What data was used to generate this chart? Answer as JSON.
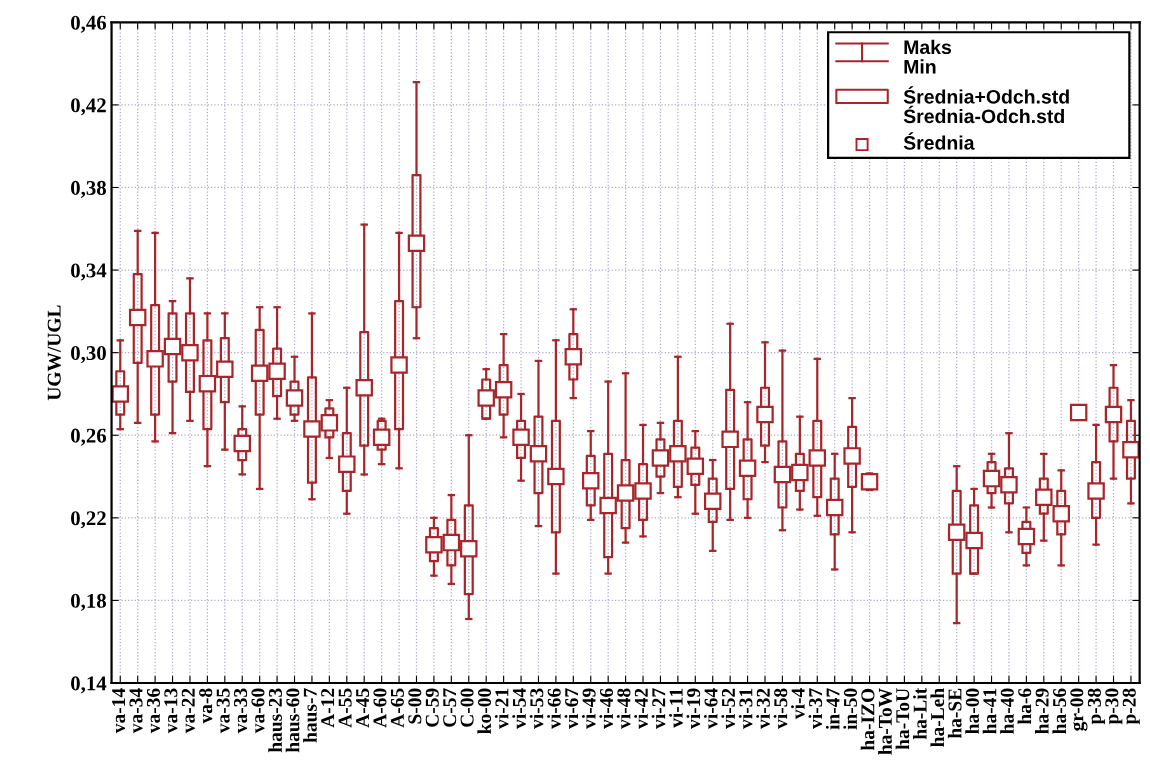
{
  "chart_data": {
    "type": "box",
    "ylabel": "UGW/UGL",
    "categories": [
      "va-14",
      "va-34",
      "va-36",
      "va-13",
      "va-22",
      "va-8",
      "va-35",
      "va-33",
      "va-60",
      "haus-23",
      "haus-60",
      "haus-7",
      "A-12",
      "A-55",
      "A-45",
      "A-60",
      "A-65",
      "S-00",
      "C-59",
      "C-57",
      "C-00",
      "ko-00",
      "vi-21",
      "vi-54",
      "vi-53",
      "vi-66",
      "vi-67",
      "vi-49",
      "vi-46",
      "vi-48",
      "vi-42",
      "vi-27",
      "vi-11",
      "vi-19",
      "vi-64",
      "vi-52",
      "vi-31",
      "vi-32",
      "vi-58",
      "vi-4",
      "vi-37",
      "in-47",
      "in-50",
      "ha-IZO",
      "ha-ToW",
      "ha-ToU",
      "ha-Lit",
      "ha-Leh",
      "ha-SE",
      "ha-00",
      "ha-41",
      "ha-40",
      "ha-6",
      "ha-29",
      "ha-56",
      "gr-00",
      "p-38",
      "p-30",
      "p-28"
    ],
    "color": "#a8262a",
    "boxes": [
      {
        "low": 0.263,
        "q1": 0.27,
        "mean": 0.28,
        "q3": 0.291,
        "high": 0.306
      },
      {
        "low": 0.266,
        "q1": 0.295,
        "mean": 0.317,
        "q3": 0.338,
        "high": 0.359
      },
      {
        "low": 0.257,
        "q1": 0.27,
        "mean": 0.297,
        "q3": 0.323,
        "high": 0.358
      },
      {
        "low": 0.261,
        "q1": 0.286,
        "mean": 0.303,
        "q3": 0.319,
        "high": 0.325
      },
      {
        "low": 0.267,
        "q1": 0.281,
        "mean": 0.3,
        "q3": 0.319,
        "high": 0.336
      },
      {
        "low": 0.245,
        "q1": 0.263,
        "mean": 0.285,
        "q3": 0.306,
        "high": 0.319
      },
      {
        "low": 0.253,
        "q1": 0.276,
        "mean": 0.292,
        "q3": 0.307,
        "high": 0.319
      },
      {
        "low": 0.241,
        "q1": 0.248,
        "mean": 0.256,
        "q3": 0.263,
        "high": 0.274
      },
      {
        "low": 0.234,
        "q1": 0.27,
        "mean": 0.29,
        "q3": 0.311,
        "high": 0.322
      },
      {
        "low": 0.268,
        "q1": 0.279,
        "mean": 0.291,
        "q3": 0.302,
        "high": 0.322
      },
      {
        "low": 0.267,
        "q1": 0.27,
        "mean": 0.278,
        "q3": 0.286,
        "high": 0.298
      },
      {
        "low": 0.229,
        "q1": 0.237,
        "mean": 0.263,
        "q3": 0.288,
        "high": 0.319
      },
      {
        "low": 0.249,
        "q1": 0.259,
        "mean": 0.266,
        "q3": 0.273,
        "high": 0.277
      },
      {
        "low": 0.222,
        "q1": 0.233,
        "mean": 0.246,
        "q3": 0.261,
        "high": 0.283
      },
      {
        "low": 0.241,
        "q1": 0.255,
        "mean": 0.283,
        "q3": 0.31,
        "high": 0.362
      },
      {
        "low": 0.246,
        "q1": 0.253,
        "mean": 0.259,
        "q3": 0.267,
        "high": 0.268
      },
      {
        "low": 0.244,
        "q1": 0.263,
        "mean": 0.294,
        "q3": 0.325,
        "high": 0.358
      },
      {
        "low": 0.307,
        "q1": 0.322,
        "mean": 0.353,
        "q3": 0.386,
        "high": 0.431
      },
      {
        "low": 0.192,
        "q1": 0.199,
        "mean": 0.207,
        "q3": 0.215,
        "high": 0.22
      },
      {
        "low": 0.188,
        "q1": 0.197,
        "mean": 0.208,
        "q3": 0.219,
        "high": 0.231
      },
      {
        "low": 0.171,
        "q1": 0.183,
        "mean": 0.205,
        "q3": 0.226,
        "high": 0.26
      },
      {
        "low": 0.268,
        "q1": 0.268,
        "mean": 0.278,
        "q3": 0.287,
        "high": 0.292
      },
      {
        "low": 0.259,
        "q1": 0.27,
        "mean": 0.282,
        "q3": 0.294,
        "high": 0.309
      },
      {
        "low": 0.238,
        "q1": 0.249,
        "mean": 0.259,
        "q3": 0.267,
        "high": 0.28
      },
      {
        "low": 0.216,
        "q1": 0.232,
        "mean": 0.251,
        "q3": 0.269,
        "high": 0.296
      },
      {
        "low": 0.193,
        "q1": 0.213,
        "mean": 0.24,
        "q3": 0.267,
        "high": 0.306
      },
      {
        "low": 0.278,
        "q1": 0.287,
        "mean": 0.298,
        "q3": 0.309,
        "high": 0.321
      },
      {
        "low": 0.219,
        "q1": 0.226,
        "mean": 0.238,
        "q3": 0.25,
        "high": 0.262
      },
      {
        "low": 0.193,
        "q1": 0.201,
        "mean": 0.226,
        "q3": 0.251,
        "high": 0.286
      },
      {
        "low": 0.208,
        "q1": 0.215,
        "mean": 0.232,
        "q3": 0.248,
        "high": 0.29
      },
      {
        "low": 0.211,
        "q1": 0.219,
        "mean": 0.233,
        "q3": 0.246,
        "high": 0.265
      },
      {
        "low": 0.232,
        "q1": 0.24,
        "mean": 0.249,
        "q3": 0.258,
        "high": 0.266
      },
      {
        "low": 0.23,
        "q1": 0.235,
        "mean": 0.251,
        "q3": 0.267,
        "high": 0.298
      },
      {
        "low": 0.222,
        "q1": 0.236,
        "mean": 0.245,
        "q3": 0.254,
        "high": 0.262
      },
      {
        "low": 0.204,
        "q1": 0.218,
        "mean": 0.228,
        "q3": 0.239,
        "high": 0.248
      },
      {
        "low": 0.219,
        "q1": 0.234,
        "mean": 0.258,
        "q3": 0.282,
        "high": 0.314
      },
      {
        "low": 0.22,
        "q1": 0.229,
        "mean": 0.244,
        "q3": 0.258,
        "high": 0.276
      },
      {
        "low": 0.247,
        "q1": 0.255,
        "mean": 0.27,
        "q3": 0.283,
        "high": 0.305
      },
      {
        "low": 0.214,
        "q1": 0.225,
        "mean": 0.241,
        "q3": 0.257,
        "high": 0.301
      },
      {
        "low": 0.224,
        "q1": 0.233,
        "mean": 0.242,
        "q3": 0.251,
        "high": 0.269
      },
      {
        "low": 0.221,
        "q1": 0.23,
        "mean": 0.249,
        "q3": 0.267,
        "high": 0.297
      },
      {
        "low": 0.195,
        "q1": 0.212,
        "mean": 0.225,
        "q3": 0.239,
        "high": 0.251
      },
      {
        "low": 0.213,
        "q1": 0.235,
        "mean": 0.25,
        "q3": 0.264,
        "high": 0.278
      },
      {
        "low": 0.2335,
        "q1": 0.2345,
        "mean": 0.2375,
        "q3": 0.24,
        "high": 0.2415
      },
      null,
      null,
      null,
      null,
      {
        "low": 0.169,
        "q1": 0.193,
        "mean": 0.213,
        "q3": 0.233,
        "high": 0.245
      },
      {
        "low": 0.193,
        "q1": 0.193,
        "mean": 0.209,
        "q3": 0.226,
        "high": 0.234
      },
      {
        "low": 0.225,
        "q1": 0.232,
        "mean": 0.239,
        "q3": 0.247,
        "high": 0.251
      },
      {
        "low": 0.213,
        "q1": 0.227,
        "mean": 0.236,
        "q3": 0.244,
        "high": 0.261
      },
      {
        "low": 0.197,
        "q1": 0.203,
        "mean": 0.211,
        "q3": 0.218,
        "high": 0.225
      },
      {
        "low": 0.209,
        "q1": 0.222,
        "mean": 0.23,
        "q3": 0.239,
        "high": 0.251
      },
      {
        "low": 0.197,
        "q1": 0.212,
        "mean": 0.222,
        "q3": 0.233,
        "high": 0.243
      },
      {
        "low": 0.271,
        "q1": 0.271,
        "mean": 0.271,
        "q3": 0.271,
        "high": 0.271
      },
      {
        "low": 0.207,
        "q1": 0.22,
        "mean": 0.233,
        "q3": 0.247,
        "high": 0.265
      },
      {
        "low": 0.239,
        "q1": 0.257,
        "mean": 0.27,
        "q3": 0.283,
        "high": 0.294
      },
      {
        "low": 0.227,
        "q1": 0.239,
        "mean": 0.253,
        "q3": 0.267,
        "high": 0.277
      }
    ],
    "ylim": [
      0.14,
      0.46
    ],
    "yticks": [
      {
        "value": 0.14,
        "label": "0,14"
      },
      {
        "value": 0.18,
        "label": "0,18"
      },
      {
        "value": 0.22,
        "label": "0,22"
      },
      {
        "value": 0.26,
        "label": "0,26"
      },
      {
        "value": 0.3,
        "label": "0,30"
      },
      {
        "value": 0.34,
        "label": "0,34"
      },
      {
        "value": 0.38,
        "label": "0,38"
      },
      {
        "value": 0.42,
        "label": "0,42"
      },
      {
        "value": 0.46,
        "label": "0,46"
      }
    ],
    "grid": true,
    "annotations": [
      "Maks\nMin",
      "Średnia+Odch.std\nŚrednia-Odch.std",
      "Średnia"
    ]
  }
}
